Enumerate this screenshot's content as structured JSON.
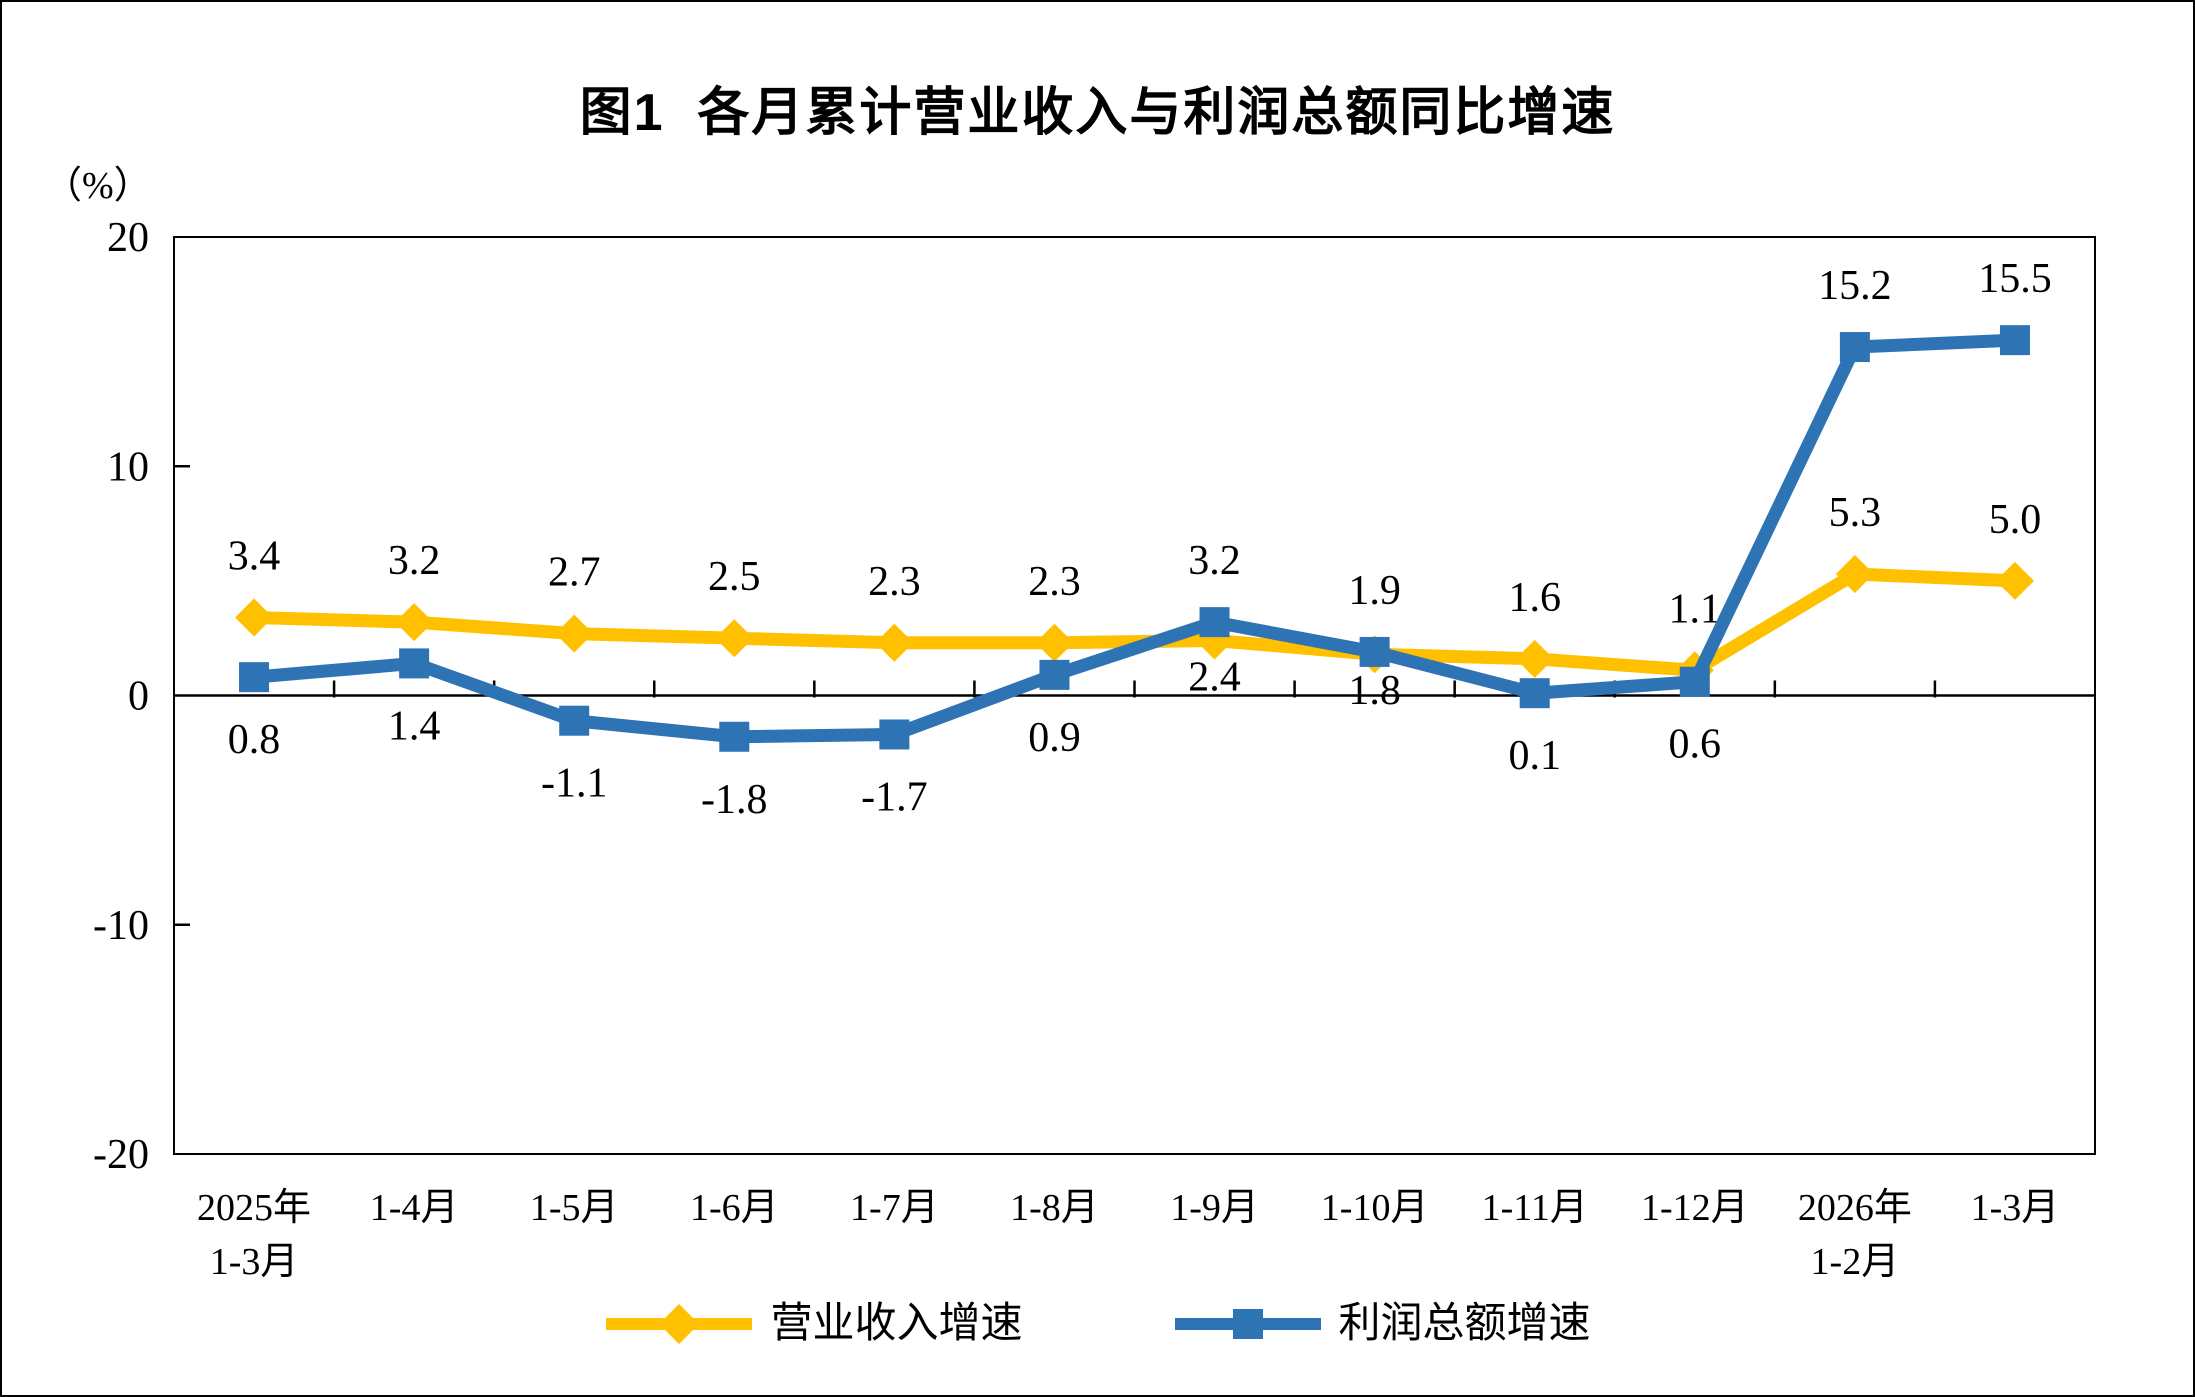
{
  "chart_data": {
    "type": "line",
    "title": "图1  各月累计营业收入与利润总额同比增速",
    "unit_label": "（%）",
    "categories": [
      "2025年\n1-3月",
      "1-4月",
      "1-5月",
      "1-6月",
      "1-7月",
      "1-8月",
      "1-9月",
      "1-10月",
      "1-11月",
      "1-12月",
      "2026年\n1-2月",
      "1-3月"
    ],
    "ylim": [
      -20,
      20
    ],
    "yticks": [
      20,
      10,
      0,
      -10,
      -20
    ],
    "grid": false,
    "legend_position": "bottom",
    "series": [
      {
        "key": "revenue-growth",
        "name": "营业收入增速",
        "color": "#FFC000",
        "marker": "diamond",
        "values": [
          3.4,
          3.2,
          2.7,
          2.5,
          2.3,
          2.3,
          2.4,
          1.8,
          1.6,
          1.1,
          5.3,
          5.0
        ],
        "label_positions": [
          "above",
          "above",
          "above",
          "above",
          "above",
          "above",
          "below",
          "below",
          "above",
          "above",
          "above",
          "above"
        ]
      },
      {
        "key": "profit-growth",
        "name": "利润总额增速",
        "color": "#2E74B5",
        "marker": "square",
        "values": [
          0.8,
          1.4,
          -1.1,
          -1.8,
          -1.7,
          0.9,
          3.2,
          1.9,
          0.1,
          0.6,
          15.2,
          15.5
        ],
        "label_positions": [
          "below",
          "below",
          "below",
          "below",
          "below",
          "below",
          "above",
          "above",
          "below",
          "below",
          "above",
          "above"
        ]
      }
    ]
  }
}
